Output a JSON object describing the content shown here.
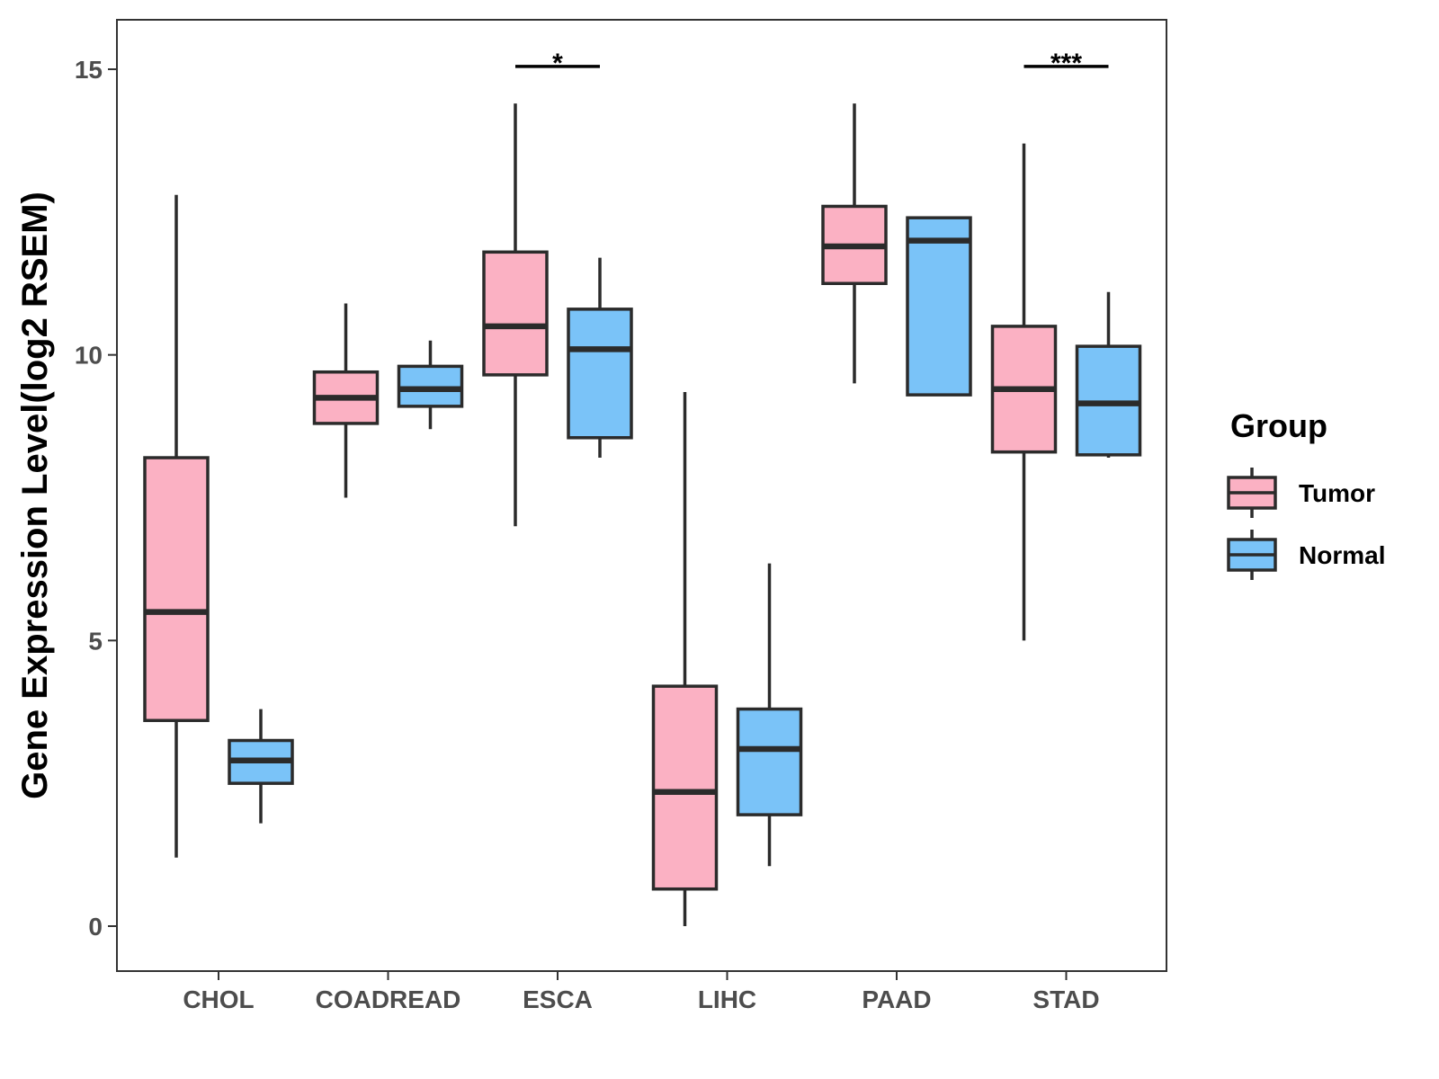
{
  "chart_data": {
    "type": "boxplot",
    "ylabel": "Gene Expression Level(log2 RSEM)",
    "xlabel": "",
    "ylim": [
      -0.75,
      15.85
    ],
    "yticks": [
      0,
      5,
      10,
      15
    ],
    "ytick_labels": [
      "0",
      "5",
      "10",
      "15"
    ],
    "categories": [
      "CHOL",
      "COADREAD",
      "ESCA",
      "LIHC",
      "PAAD",
      "STAD"
    ],
    "legend": {
      "title": "Group",
      "position": "right",
      "entries": [
        {
          "name": "Tumor",
          "color": "#FBB1C3"
        },
        {
          "name": "Normal",
          "color": "#7AC3F8"
        }
      ]
    },
    "series": [
      {
        "name": "Tumor",
        "color": "#FBB1C3",
        "boxes": [
          {
            "category": "CHOL",
            "min": 1.2,
            "q1": 3.6,
            "median": 5.5,
            "q3": 8.2,
            "max": 12.8
          },
          {
            "category": "COADREAD",
            "min": 7.5,
            "q1": 8.8,
            "median": 9.25,
            "q3": 9.7,
            "max": 10.9
          },
          {
            "category": "ESCA",
            "min": 7.0,
            "q1": 9.65,
            "median": 10.5,
            "q3": 11.8,
            "max": 14.4
          },
          {
            "category": "LIHC",
            "min": 0.0,
            "q1": 0.65,
            "median": 2.35,
            "q3": 4.2,
            "max": 9.35
          },
          {
            "category": "PAAD",
            "min": 9.5,
            "q1": 11.25,
            "median": 11.9,
            "q3": 12.6,
            "max": 14.4
          },
          {
            "category": "STAD",
            "min": 5.0,
            "q1": 8.3,
            "median": 9.4,
            "q3": 10.5,
            "max": 13.7
          }
        ]
      },
      {
        "name": "Normal",
        "color": "#7AC3F8",
        "boxes": [
          {
            "category": "CHOL",
            "min": 1.8,
            "q1": 2.5,
            "median": 2.9,
            "q3": 3.25,
            "max": 3.8
          },
          {
            "category": "COADREAD",
            "min": 8.7,
            "q1": 9.1,
            "median": 9.4,
            "q3": 9.8,
            "max": 10.25
          },
          {
            "category": "ESCA",
            "min": 8.2,
            "q1": 8.55,
            "median": 10.1,
            "q3": 10.8,
            "max": 11.7
          },
          {
            "category": "LIHC",
            "min": 1.05,
            "q1": 1.95,
            "median": 3.1,
            "q3": 3.8,
            "max": 6.35
          },
          {
            "category": "PAAD",
            "min": 9.3,
            "q1": 9.3,
            "median": 12.0,
            "q3": 12.4,
            "max": 12.4
          },
          {
            "category": "STAD",
            "min": 8.2,
            "q1": 8.25,
            "median": 9.15,
            "q3": 10.15,
            "max": 11.1
          }
        ]
      }
    ],
    "annotations": [
      {
        "category": "ESCA",
        "label": "*",
        "y": 15.05
      },
      {
        "category": "STAD",
        "label": "***",
        "y": 15.05
      }
    ]
  }
}
